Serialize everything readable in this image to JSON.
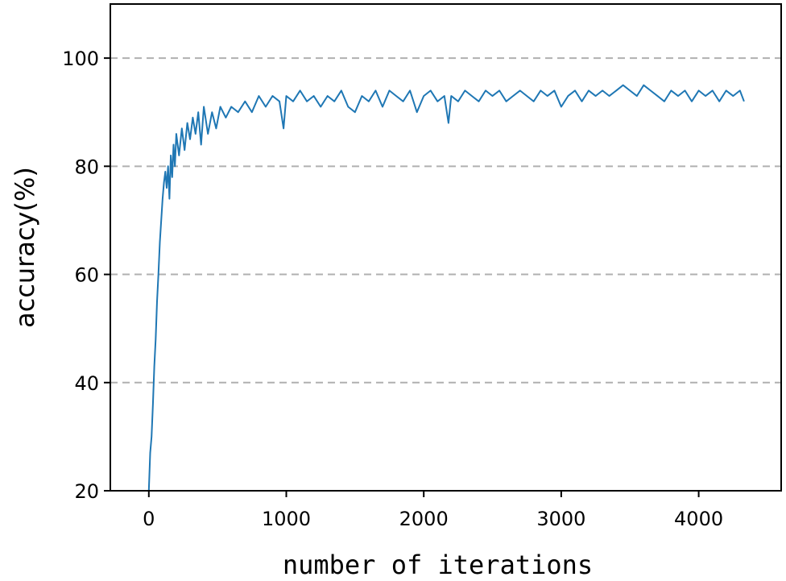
{
  "chart_data": {
    "type": "line",
    "xlabel": "number of iterations",
    "ylabel": "accuracy(%)",
    "xlim": [
      -280,
      4600
    ],
    "ylim": [
      20,
      110
    ],
    "x_ticks": [
      0,
      1000,
      2000,
      3000,
      4000
    ],
    "y_ticks": [
      20,
      40,
      60,
      80,
      100
    ],
    "grid": "horizontal dashed",
    "line_color": "#1f77b4",
    "grid_color": "#b0b0b0",
    "series": [
      {
        "x": [
          0,
          10,
          20,
          30,
          40,
          50,
          60,
          70,
          80,
          90,
          100,
          110,
          120,
          130,
          140,
          150,
          160,
          170,
          180,
          190,
          200,
          220,
          240,
          260,
          280,
          300,
          320,
          340,
          360,
          380,
          400,
          430,
          460,
          490,
          520,
          560,
          600,
          650,
          700,
          750,
          800,
          850,
          900,
          950,
          980,
          1000,
          1050,
          1100,
          1150,
          1200,
          1250,
          1300,
          1350,
          1400,
          1450,
          1500,
          1550,
          1600,
          1650,
          1700,
          1750,
          1800,
          1850,
          1900,
          1950,
          2000,
          2050,
          2100,
          2150,
          2180,
          2200,
          2250,
          2300,
          2350,
          2400,
          2450,
          2500,
          2550,
          2600,
          2650,
          2700,
          2750,
          2800,
          2850,
          2900,
          2950,
          3000,
          3050,
          3100,
          3150,
          3200,
          3250,
          3300,
          3350,
          3400,
          3450,
          3500,
          3550,
          3600,
          3650,
          3700,
          3750,
          3800,
          3850,
          3900,
          3950,
          4000,
          4050,
          4100,
          4150,
          4200,
          4250,
          4300,
          4330
        ],
        "y": [
          20,
          27,
          30,
          36,
          43,
          48,
          55,
          60,
          66,
          70,
          74,
          77,
          79,
          76,
          80,
          74,
          82,
          78,
          84,
          80,
          86,
          82,
          87,
          83,
          88,
          85,
          89,
          86,
          90,
          84,
          91,
          86,
          90,
          87,
          91,
          89,
          91,
          90,
          92,
          90,
          93,
          91,
          93,
          92,
          87,
          93,
          92,
          94,
          92,
          93,
          91,
          93,
          92,
          94,
          91,
          90,
          93,
          92,
          94,
          91,
          94,
          93,
          92,
          94,
          90,
          93,
          94,
          92,
          93,
          88,
          93,
          92,
          94,
          93,
          92,
          94,
          93,
          94,
          92,
          93,
          94,
          93,
          92,
          94,
          93,
          94,
          91,
          93,
          94,
          92,
          94,
          93,
          94,
          93,
          94,
          95,
          94,
          93,
          95,
          94,
          93,
          92,
          94,
          93,
          94,
          92,
          94,
          93,
          94,
          92,
          94,
          93,
          94,
          92
        ]
      }
    ]
  }
}
